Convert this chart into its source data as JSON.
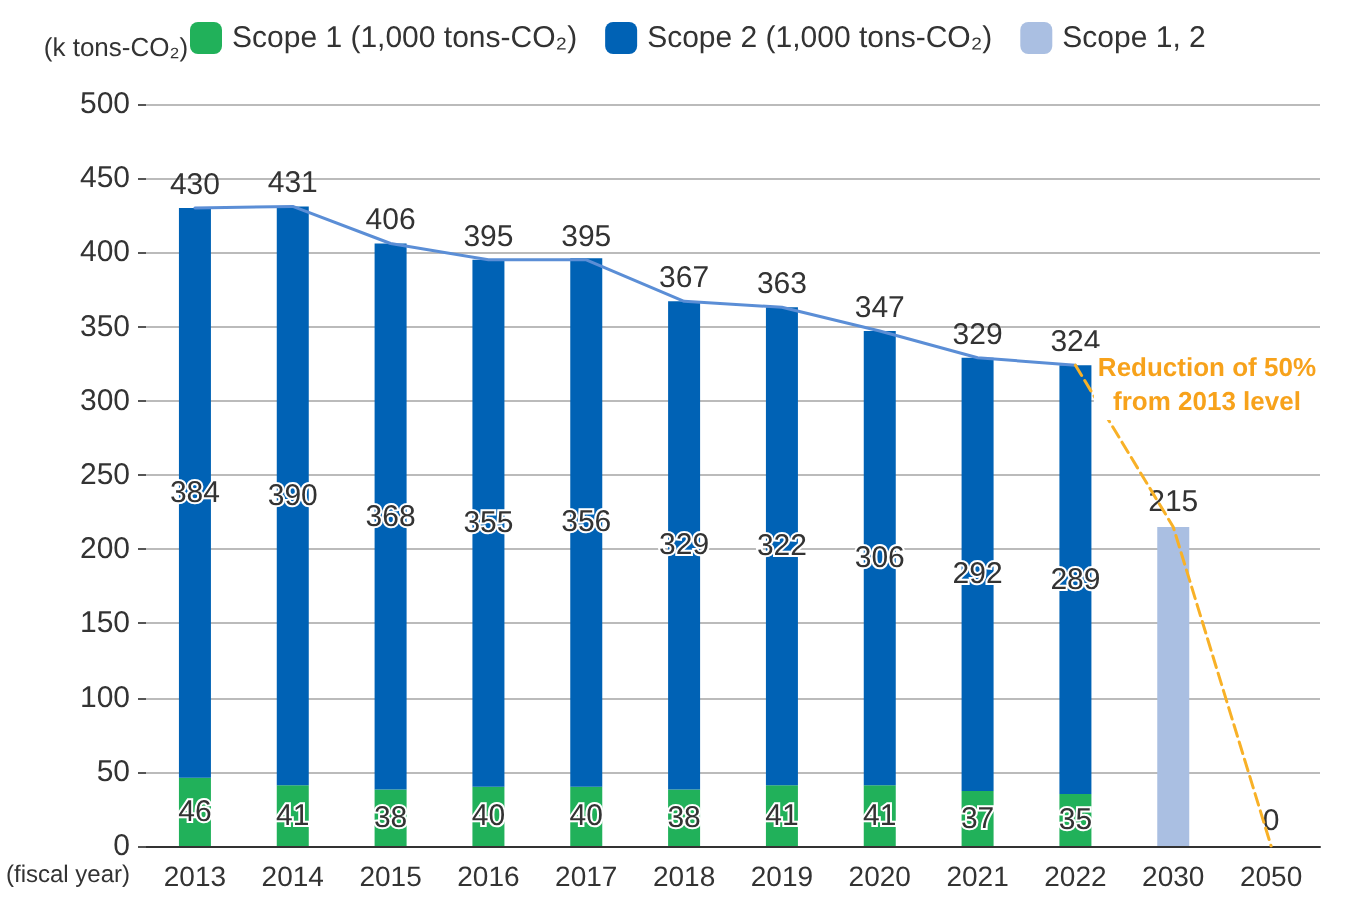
{
  "chart_data": {
    "type": "bar",
    "stacked": true,
    "ylabel": "(k tons-CO₂)",
    "xlabel": "(fiscal year)",
    "categories": [
      "2013",
      "2014",
      "2015",
      "2016",
      "2017",
      "2018",
      "2019",
      "2020",
      "2021",
      "2022",
      "2030",
      "2050"
    ],
    "series": [
      {
        "name": "Scope 1 (1,000 tons-CO₂)",
        "color": "#21b15a",
        "values": [
          46,
          41,
          38,
          40,
          40,
          38,
          41,
          41,
          37,
          35,
          null,
          null
        ],
        "value_labels": [
          "46",
          "41",
          "38",
          "40",
          "40",
          "38",
          "41",
          "41",
          "37",
          "35",
          null,
          null
        ]
      },
      {
        "name": "Scope 2 (1,000 tons-CO₂)",
        "color": "#0062b5",
        "values": [
          384,
          390,
          368,
          355,
          356,
          329,
          322,
          306,
          292,
          289,
          null,
          null
        ],
        "value_labels": [
          "384",
          "390",
          "368",
          "355",
          "356",
          "329",
          "322",
          "306",
          "292",
          "289",
          null,
          null
        ]
      },
      {
        "name": "Scope 1, 2",
        "color": "#aabfe2",
        "values": [
          null,
          null,
          null,
          null,
          null,
          null,
          null,
          null,
          null,
          null,
          215,
          0
        ],
        "value_labels": [
          null,
          null,
          null,
          null,
          null,
          null,
          null,
          null,
          null,
          null,
          "215",
          "0"
        ]
      },
      {
        "type": "line",
        "color": "#5b8ed6",
        "line_style": "solid",
        "marker": "none",
        "values": [
          430,
          431,
          406,
          395,
          395,
          367,
          363,
          347,
          329,
          324,
          null,
          null
        ],
        "value_labels": [
          "430",
          "431",
          "406",
          "395",
          "395",
          "367",
          "363",
          "347",
          "329",
          "324",
          null,
          null
        ]
      },
      {
        "type": "line",
        "color": "#f8b127",
        "line_style": "dashed",
        "marker": "none",
        "values": [
          null,
          null,
          null,
          null,
          null,
          null,
          null,
          null,
          null,
          324,
          215,
          0
        ]
      }
    ],
    "annotations": [
      "Reduction of 50% from 2013 level"
    ],
    "ylim": [
      0,
      500
    ],
    "yticks": [
      0,
      50,
      100,
      150,
      200,
      250,
      300,
      350,
      400,
      450,
      500
    ],
    "grid": "y",
    "legend": "top"
  }
}
